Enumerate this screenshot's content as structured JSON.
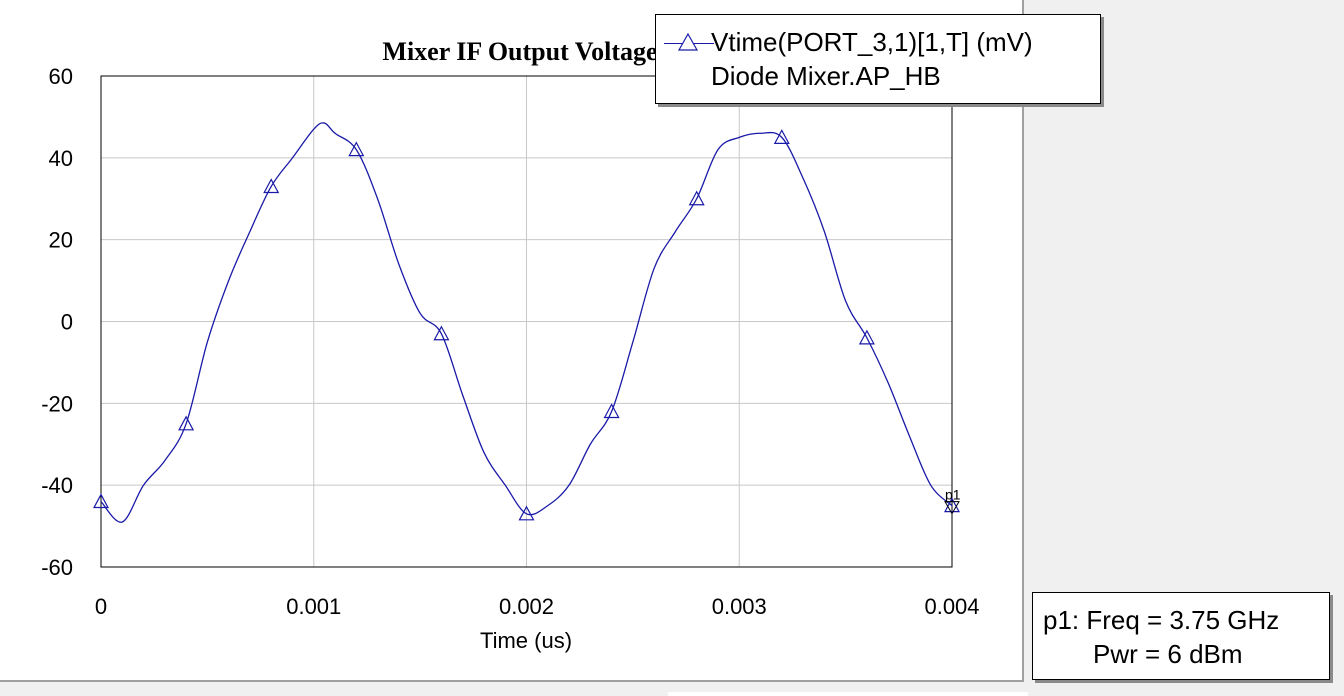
{
  "colors": {
    "series": "#1a1aa8",
    "grid": "#c8c8c8",
    "background": "#ffffff"
  },
  "legend": {
    "line1": "Vtime(PORT_3,1)[1,T] (mV)",
    "line2": "Diode Mixer.AP_HB",
    "marker_icon": "triangle-up-icon"
  },
  "marker_readout": {
    "line1": "p1: Freq = 3.75 GHz",
    "line2": "Pwr = 6 dBm"
  },
  "chart_data": {
    "type": "line",
    "title": "Mixer IF Output Voltage",
    "xlabel": "Time (us)",
    "ylabel": "",
    "xlim": [
      0,
      0.004
    ],
    "ylim": [
      -60,
      60
    ],
    "xticks": [
      "0",
      "0.001",
      "0.002",
      "0.003",
      "0.004"
    ],
    "yticks": [
      "60",
      "40",
      "20",
      "0",
      "-20",
      "-40",
      "-60"
    ],
    "grid": true,
    "legend_position": "top-right",
    "marker": {
      "label": "p1",
      "x": 0.004,
      "y": -45
    },
    "series": [
      {
        "name": "Vtime(PORT_3,1)[1,T] (mV)",
        "x": [
          0,
          0.0001,
          0.0002,
          0.0003,
          0.0004,
          0.0005,
          0.0006,
          0.0007,
          0.0008,
          0.0009,
          0.001,
          0.00105,
          0.0011,
          0.0012,
          0.0013,
          0.0014,
          0.0015,
          0.0016,
          0.0017,
          0.0018,
          0.0019,
          0.002,
          0.0021,
          0.0022,
          0.0023,
          0.0024,
          0.0025,
          0.0026,
          0.0027,
          0.0028,
          0.0029,
          0.003,
          0.0031,
          0.0032,
          0.0033,
          0.0034,
          0.0035,
          0.0036,
          0.0037,
          0.0038,
          0.0039,
          0.004
        ],
        "y": [
          -44,
          -49,
          -40,
          -34,
          -25,
          -5,
          10,
          22,
          33,
          40,
          47,
          48.5,
          46,
          42,
          30,
          14,
          2,
          -3,
          -18,
          -32,
          -40,
          -47,
          -45,
          -40,
          -30,
          -22,
          -5,
          13,
          22,
          30,
          42,
          45,
          46,
          45,
          35,
          22,
          5,
          -4,
          -15,
          -28,
          -40,
          -45
        ],
        "marker_x": [
          0,
          0.0004,
          0.0008,
          0.0012,
          0.0016,
          0.002,
          0.0024,
          0.0028,
          0.0032,
          0.0036,
          0.004
        ]
      }
    ]
  }
}
